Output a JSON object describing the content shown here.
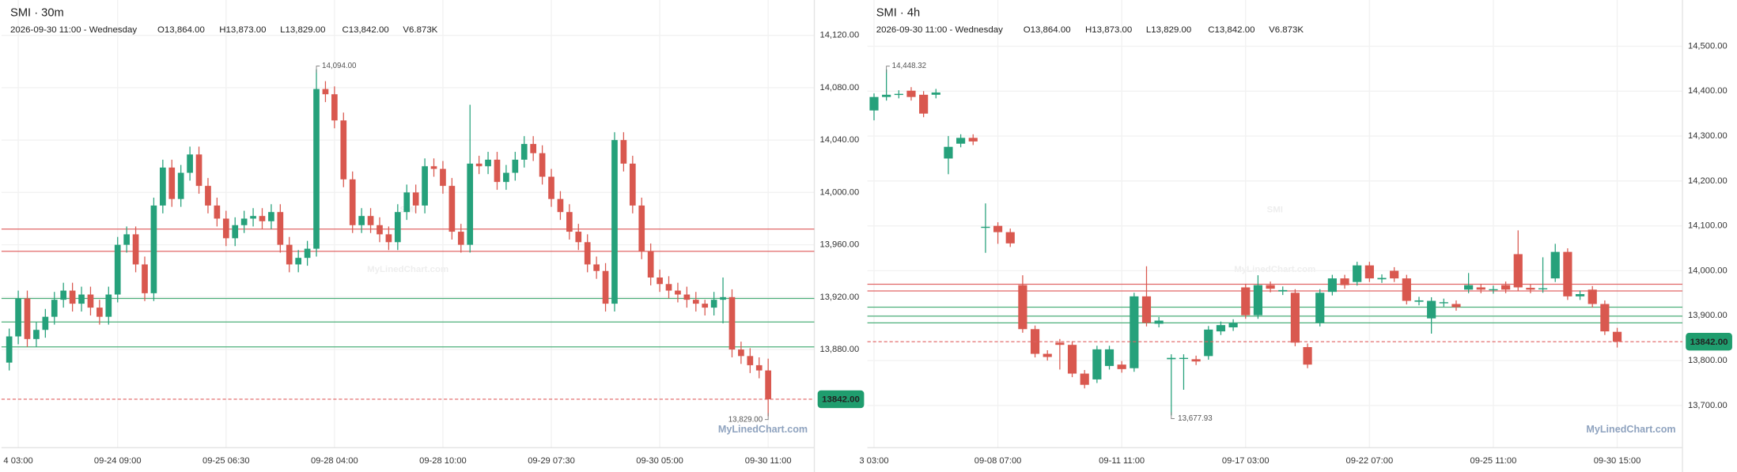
{
  "chart_data": [
    {
      "type": "candlestick",
      "title": "SMI · 30m",
      "datetime": "2026-09-30 11:00 - Wednesday",
      "ohlcv": [
        "O13,864.00",
        "H13,873.00",
        "L13,829.00",
        "C13,842.00",
        "V6.873K"
      ],
      "watermark": "SMI",
      "watermark_site": "MyLinedChart.com",
      "attribution": "MyLinedChart.com",
      "up_color": "#26a17b",
      "down_color": "#d9584f",
      "categories": [
        null,
        "4 03:00",
        null,
        null,
        null,
        null,
        null,
        null,
        null,
        null,
        null,
        null,
        "09-24 09:00",
        null,
        null,
        null,
        null,
        null,
        null,
        null,
        null,
        null,
        null,
        null,
        "09-25 06:30",
        null,
        null,
        null,
        null,
        null,
        null,
        null,
        null,
        null,
        null,
        null,
        "09-28 04:00",
        null,
        null,
        null,
        null,
        null,
        null,
        null,
        null,
        null,
        null,
        null,
        "09-28 10:00",
        null,
        null,
        null,
        null,
        null,
        null,
        null,
        null,
        null,
        null,
        null,
        "09-29 07:30",
        null,
        null,
        null,
        null,
        null,
        null,
        null,
        null,
        null,
        null,
        null,
        "09-30 05:00",
        null,
        null,
        null,
        null,
        null,
        null,
        null,
        null,
        null,
        null,
        null,
        "09-30 11:00"
      ],
      "open": [
        13870,
        13890,
        13919,
        13888,
        13895,
        13905,
        13918,
        13925,
        13915,
        13922,
        13912,
        13905,
        13922,
        13960,
        13968,
        13945,
        13923,
        13990,
        14019,
        13995,
        14015,
        14029,
        14005,
        13990,
        13980,
        13965,
        13975,
        13980,
        13982,
        13978,
        13985,
        13960,
        13945,
        13950,
        13957,
        14079,
        14075,
        14055,
        14010,
        13975,
        13982,
        13975,
        13968,
        13962,
        13985,
        14000,
        13990,
        14020,
        14018,
        14005,
        13970,
        13960,
        14022,
        14020,
        14025,
        14008,
        14015,
        14025,
        14037,
        14030,
        14012,
        13995,
        13985,
        13970,
        13962,
        13945,
        13940,
        13915,
        14040,
        14022,
        13990,
        13955,
        13935,
        13930,
        13925,
        13922,
        13918,
        13915,
        13912,
        13918,
        13920,
        13880,
        13875,
        13868,
        13864
      ],
      "high": [
        13896,
        13925,
        13925,
        13901,
        13911,
        13924,
        13931,
        13931,
        13928,
        13928,
        13918,
        13928,
        13966,
        13974,
        13974,
        13951,
        13996,
        14025,
        14025,
        14021,
        14035,
        14035,
        14011,
        13996,
        13986,
        13981,
        13986,
        13988,
        13988,
        13991,
        13991,
        13966,
        13956,
        13963,
        14094,
        14085,
        14081,
        14061,
        14016,
        13988,
        13988,
        13981,
        13974,
        13991,
        14006,
        14006,
        14026,
        14026,
        14024,
        14011,
        13976,
        14067,
        14028,
        14031,
        14031,
        14021,
        14031,
        14043,
        14043,
        14036,
        14018,
        14001,
        13991,
        13976,
        13968,
        13951,
        13946,
        14046,
        14046,
        14028,
        13996,
        13961,
        13941,
        13936,
        13931,
        13928,
        13924,
        13918,
        13924,
        13935,
        13926,
        13886,
        13881,
        13874,
        13873
      ],
      "low": [
        13864,
        13884,
        13882,
        13882,
        13889,
        13899,
        13912,
        13909,
        13909,
        13906,
        13899,
        13899,
        13916,
        13954,
        13939,
        13917,
        13917,
        13984,
        13989,
        13989,
        14009,
        13999,
        13984,
        13974,
        13959,
        13959,
        13969,
        13974,
        13972,
        13972,
        13954,
        13939,
        13939,
        13944,
        13951,
        14069,
        14049,
        14004,
        13969,
        13969,
        13969,
        13962,
        13956,
        13956,
        13979,
        13984,
        13984,
        14012,
        13999,
        13964,
        13954,
        13954,
        14014,
        14014,
        14002,
        14002,
        14009,
        14019,
        14024,
        14006,
        13989,
        13979,
        13964,
        13956,
        13939,
        13934,
        13909,
        13909,
        14016,
        13984,
        13949,
        13929,
        13924,
        13919,
        13916,
        13912,
        13909,
        13906,
        13906,
        13900,
        13874,
        13869,
        13862,
        13858,
        13829
      ],
      "close": [
        13890,
        13919,
        13888,
        13895,
        13905,
        13918,
        13925,
        13915,
        13922,
        13912,
        13905,
        13922,
        13960,
        13968,
        13945,
        13923,
        13990,
        14019,
        13995,
        14015,
        14029,
        14005,
        13990,
        13980,
        13965,
        13975,
        13980,
        13982,
        13978,
        13985,
        13960,
        13945,
        13950,
        13957,
        14079,
        14075,
        14055,
        14010,
        13975,
        13982,
        13975,
        13968,
        13962,
        13985,
        14000,
        13990,
        14020,
        14018,
        14005,
        13970,
        13960,
        14022,
        14020,
        14025,
        14008,
        14015,
        14025,
        14037,
        14030,
        14012,
        13995,
        13985,
        13970,
        13962,
        13945,
        13940,
        13915,
        14040,
        14022,
        13990,
        13955,
        13935,
        13930,
        13925,
        13922,
        13918,
        13915,
        13912,
        13918,
        13920,
        13880,
        13875,
        13868,
        13864,
        13842
      ],
      "high_label": "14,094.00",
      "low_label": "13,829.00",
      "ylim": [
        13805,
        14147
      ],
      "yticks": [
        {
          "value": 14120,
          "label": "14,120.00"
        },
        {
          "value": 14080,
          "label": "14,080.00"
        },
        {
          "value": 14040,
          "label": "14,040.00"
        },
        {
          "value": 14000,
          "label": "14,000.00"
        },
        {
          "value": 13960,
          "label": "13,960.00"
        },
        {
          "value": 13920,
          "label": "13,920.00"
        },
        {
          "value": 13880,
          "label": "13,880.00"
        }
      ],
      "levels": [
        {
          "value": 13972,
          "color": "#e06666"
        },
        {
          "value": 13955,
          "color": "#e06666"
        },
        {
          "value": 13919,
          "color": "#4caf7a"
        },
        {
          "value": 13901,
          "color": "#4caf7a"
        },
        {
          "value": 13882,
          "color": "#4caf7a"
        }
      ],
      "price_line": {
        "value": 13842,
        "label": "13842.00",
        "color": "#e06060",
        "badge_color": "#1f9d6e"
      },
      "grid": true
    },
    {
      "type": "candlestick",
      "title": "SMI · 4h",
      "datetime": "2026-09-30 11:00 - Wednesday",
      "ohlcv": [
        "O13,864.00",
        "H13,873.00",
        "L13,829.00",
        "C13,842.00",
        "V6.873K"
      ],
      "watermark": "SMI",
      "watermark_site": "MyLinedChart.com",
      "attribution": "MyLinedChart.com",
      "up_color": "#26a17b",
      "down_color": "#d9584f",
      "categories": [
        "3 03:00",
        null,
        null,
        null,
        null,
        null,
        null,
        null,
        null,
        null,
        "09-08 07:00",
        null,
        null,
        null,
        null,
        null,
        null,
        null,
        null,
        null,
        "09-11 11:00",
        null,
        null,
        null,
        null,
        null,
        null,
        null,
        null,
        null,
        "09-17 03:00",
        null,
        null,
        null,
        null,
        null,
        null,
        null,
        null,
        null,
        "09-22 07:00",
        null,
        null,
        null,
        null,
        null,
        null,
        null,
        null,
        null,
        "09-25 11:00",
        null,
        null,
        null,
        null,
        null,
        null,
        null,
        null,
        null,
        "09-30 15:00"
      ],
      "open": [
        14357,
        14387,
        14392,
        14401,
        14392,
        14392,
        14250,
        14283,
        14296,
        14096,
        14100,
        14086,
        13968,
        13870,
        13815,
        13840,
        13835,
        13771,
        13758,
        13788,
        13791,
        13783,
        13943,
        13882,
        13803,
        13804,
        13803,
        13810,
        13865,
        13874,
        13963,
        13901,
        13968,
        13954,
        13951,
        13830,
        13884,
        13953,
        13983,
        13975,
        14012,
        13981,
        14000,
        13983,
        13931,
        13894,
        13928,
        13926,
        13958,
        13963,
        13957,
        13968,
        14037,
        13962,
        13959,
        13983,
        14042,
        13943,
        13958,
        13926,
        13864
      ],
      "high": [
        14395,
        14448.32,
        14402,
        14409,
        14400,
        14405,
        14300,
        14304,
        14304,
        14150,
        14108,
        14094,
        13990,
        13878,
        13823,
        13848,
        13843,
        13779,
        13833,
        13833,
        13799,
        13951,
        14010,
        13897,
        13814,
        13814,
        13811,
        13877,
        13887,
        13892,
        13971,
        13990,
        13976,
        13965,
        13959,
        13838,
        13959,
        13991,
        13991,
        14020,
        14020,
        13992,
        14008,
        13991,
        13942,
        13941,
        13938,
        13934,
        13995,
        13971,
        13967,
        13976,
        14090,
        13970,
        14030,
        14060,
        14050,
        13956,
        13966,
        13934,
        13873
      ],
      "low": [
        14335,
        14379,
        14384,
        14379,
        14342,
        14384,
        14215,
        14275,
        14280,
        14040,
        14060,
        14053,
        13862,
        13807,
        13800,
        13780,
        13763,
        13738,
        13750,
        13780,
        13773,
        13775,
        13876,
        13874,
        13677.93,
        13735,
        13790,
        13802,
        13857,
        13866,
        13893,
        13893,
        13952,
        13946,
        13832,
        13783,
        13876,
        13945,
        13960,
        13967,
        13975,
        13973,
        13975,
        13925,
        13923,
        13860,
        13920,
        13911,
        13950,
        13950,
        13949,
        13950,
        13955,
        13950,
        13951,
        13975,
        13935,
        13935,
        13918,
        13857,
        13829
      ],
      "close": [
        14387,
        14392,
        14394,
        14387,
        14350,
        14397,
        14276,
        14296,
        14288,
        14098,
        14086,
        14061,
        13870,
        13815,
        13808,
        13835,
        13771,
        13746,
        13825,
        13825,
        13781,
        13943,
        13884,
        13889,
        13806,
        13806,
        13798,
        13869,
        13879,
        13884,
        13901,
        13968,
        13960,
        13957,
        13840,
        13791,
        13951,
        13983,
        13968,
        14012,
        13983,
        13984,
        13983,
        13933,
        13934,
        13933,
        13930,
        13919,
        13968,
        13958,
        13959,
        13958,
        13963,
        13958,
        13961,
        14042,
        13943,
        13948,
        13926,
        13865,
        13842
      ],
      "high_label": "14,448.32",
      "low_label": "13,677.93",
      "ylim": [
        13606,
        14603
      ],
      "yticks": [
        {
          "value": 14500,
          "label": "14,500.00"
        },
        {
          "value": 14400,
          "label": "14,400.00"
        },
        {
          "value": 14300,
          "label": "14,300.00"
        },
        {
          "value": 14200,
          "label": "14,200.00"
        },
        {
          "value": 14100,
          "label": "14,100.00"
        },
        {
          "value": 14000,
          "label": "14,000.00"
        },
        {
          "value": 13900,
          "label": "13,900.00"
        },
        {
          "value": 13800,
          "label": "13,800.00"
        },
        {
          "value": 13700,
          "label": "13,700.00"
        }
      ],
      "levels": [
        {
          "value": 13970,
          "color": "#e06666"
        },
        {
          "value": 13955,
          "color": "#e06666"
        },
        {
          "value": 13919,
          "color": "#4caf7a"
        },
        {
          "value": 13899,
          "color": "#4caf7a"
        },
        {
          "value": 13884,
          "color": "#4caf7a"
        }
      ],
      "price_line": {
        "value": 13842,
        "label": "13842.00",
        "color": "#e06060",
        "badge_color": "#1f9d6e"
      },
      "grid": true
    }
  ]
}
